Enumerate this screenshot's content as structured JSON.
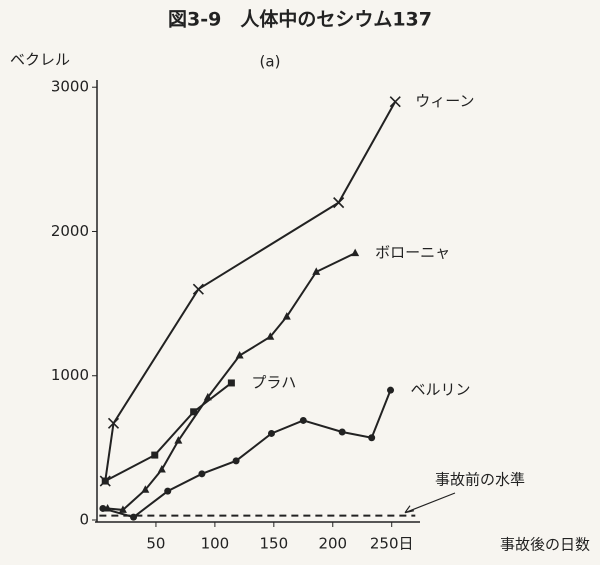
{
  "chart_data": {
    "type": "line",
    "title": "図3-9　人体中のセシウム137",
    "subtitle": "(a)",
    "y_label": "ベクレル",
    "x_label": "事故後の日数",
    "xlim": [
      0,
      274
    ],
    "ylim": [
      0,
      3050
    ],
    "xticks": [
      50,
      100,
      150,
      200,
      {
        "value": 250,
        "label": "250日"
      }
    ],
    "yticks": [
      0,
      1000,
      2000,
      3000
    ],
    "series": [
      {
        "name": "ウィーン",
        "color": "#222222",
        "marker": "x",
        "x": [
          7,
          14,
          86,
          205,
          253
        ],
        "values": [
          270,
          670,
          1600,
          2200,
          2900
        ]
      },
      {
        "name": "ボローニャ",
        "color": "#222222",
        "marker": "triangle",
        "x": [
          9,
          22,
          41,
          55,
          69,
          94,
          121,
          147,
          161,
          186,
          219
        ],
        "values": [
          80,
          70,
          210,
          350,
          550,
          850,
          1140,
          1270,
          1410,
          1720,
          1850
        ]
      },
      {
        "name": "プラハ",
        "color": "#222222",
        "marker": "square",
        "x": [
          7,
          49,
          82,
          114
        ],
        "values": [
          270,
          450,
          750,
          950
        ]
      },
      {
        "name": "ベルリン",
        "color": "#222222",
        "marker": "circle",
        "x": [
          5,
          31,
          60,
          89,
          118,
          148,
          175,
          208,
          233,
          249
        ],
        "values": [
          80,
          20,
          200,
          320,
          410,
          600,
          690,
          610,
          570,
          900
        ]
      }
    ],
    "reference_line": {
      "label": "事故前の水準",
      "x": [
        2,
        270
      ],
      "values": [
        30,
        30
      ]
    }
  }
}
